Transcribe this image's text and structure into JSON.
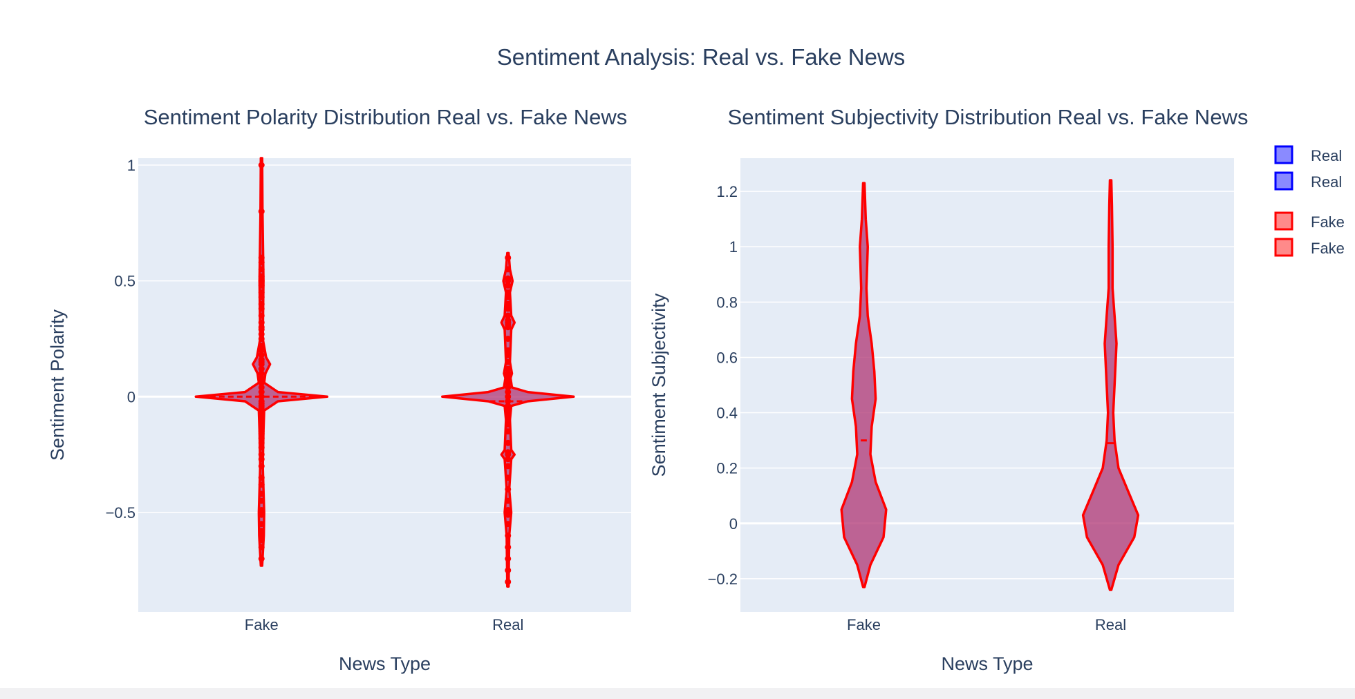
{
  "figure": {
    "title": "Sentiment Analysis: Real vs. Fake News",
    "colors": {
      "background": "#ffffff",
      "plot_bg": "#e5ecf6",
      "grid": "#ffffff",
      "text": "#2a3f5f",
      "fake_line": "#ff0000",
      "violin_fill": "#b23c78",
      "real_legend_fill": "#8a8aff",
      "real_legend_border": "#0000ff",
      "fake_legend_fill": "#ff8a8a",
      "fake_legend_border": "#ff0000"
    }
  },
  "legend": {
    "placement": "top-right",
    "entries": [
      {
        "label": "Real",
        "color": "real"
      },
      {
        "label": "Real",
        "color": "real"
      },
      {
        "label": "Fake",
        "color": "fake"
      },
      {
        "label": "Fake",
        "color": "fake"
      }
    ]
  },
  "chart_data": [
    {
      "type": "violin",
      "title": "Sentiment Polarity Distribution Real vs. Fake News",
      "xlabel": "News Type",
      "ylabel": "Sentiment Polarity",
      "categories": [
        "Fake",
        "Real"
      ],
      "ylim": [
        -0.93,
        1.03
      ],
      "yticks": [
        -0.5,
        0,
        0.5,
        1
      ],
      "ytick_labels": [
        "−0.5",
        "0",
        "0.5",
        "1"
      ],
      "grid": true,
      "meanline": true,
      "points": "all",
      "violins": [
        {
          "category": "Fake",
          "span": [
            -0.73,
            1.03
          ],
          "mean": 0.0,
          "profile": [
            [
              -0.73,
              0.01
            ],
            [
              -0.6,
              0.035
            ],
            [
              -0.5,
              0.04
            ],
            [
              -0.3,
              0.02
            ],
            [
              -0.15,
              0.03
            ],
            [
              -0.06,
              0.04
            ],
            [
              -0.02,
              0.25
            ],
            [
              0.0,
              1.0
            ],
            [
              0.02,
              0.25
            ],
            [
              0.06,
              0.04
            ],
            [
              0.1,
              0.06
            ],
            [
              0.14,
              0.13
            ],
            [
              0.17,
              0.07
            ],
            [
              0.25,
              0.02
            ],
            [
              0.5,
              0.03
            ],
            [
              0.8,
              0.015
            ],
            [
              1.03,
              0.01
            ]
          ],
          "points": [
            -0.7,
            -0.65,
            -0.62,
            -0.6,
            -0.58,
            -0.55,
            -0.51,
            -0.5,
            -0.49,
            -0.45,
            -0.42,
            -0.38,
            -0.35,
            -0.3,
            -0.27,
            -0.25,
            -0.22,
            -0.2,
            -0.18,
            -0.16,
            -0.15,
            -0.13,
            -0.12,
            -0.1,
            -0.08,
            -0.07,
            -0.06,
            -0.05,
            -0.04,
            -0.03,
            -0.02,
            0.0,
            0.02,
            0.04,
            0.06,
            0.08,
            0.1,
            0.12,
            0.14,
            0.15,
            0.16,
            0.18,
            0.2,
            0.22,
            0.25,
            0.27,
            0.29,
            0.3,
            0.32,
            0.35,
            0.38,
            0.4,
            0.43,
            0.45,
            0.48,
            0.5,
            0.52,
            0.55,
            0.58,
            0.6,
            0.8,
            1.0
          ]
        },
        {
          "category": "Real",
          "span": [
            -0.82,
            0.62
          ],
          "mean": -0.02,
          "profile": [
            [
              -0.82,
              0.01
            ],
            [
              -0.6,
              0.02
            ],
            [
              -0.5,
              0.05
            ],
            [
              -0.4,
              0.02
            ],
            [
              -0.27,
              0.05
            ],
            [
              -0.25,
              0.1
            ],
            [
              -0.23,
              0.05
            ],
            [
              -0.1,
              0.03
            ],
            [
              -0.04,
              0.05
            ],
            [
              -0.02,
              0.3
            ],
            [
              0.0,
              1.0
            ],
            [
              0.02,
              0.3
            ],
            [
              0.04,
              0.06
            ],
            [
              0.08,
              0.04
            ],
            [
              0.1,
              0.06
            ],
            [
              0.15,
              0.03
            ],
            [
              0.29,
              0.05
            ],
            [
              0.32,
              0.1
            ],
            [
              0.35,
              0.05
            ],
            [
              0.45,
              0.03
            ],
            [
              0.5,
              0.07
            ],
            [
              0.55,
              0.03
            ],
            [
              0.62,
              0.01
            ]
          ],
          "points": [
            -0.8,
            -0.75,
            -0.7,
            -0.65,
            -0.6,
            -0.55,
            -0.51,
            -0.5,
            -0.49,
            -0.45,
            -0.4,
            -0.35,
            -0.3,
            -0.27,
            -0.25,
            -0.24,
            -0.2,
            -0.15,
            -0.12,
            -0.1,
            -0.08,
            -0.06,
            -0.04,
            -0.02,
            0.0,
            0.02,
            0.04,
            0.06,
            0.08,
            0.1,
            0.12,
            0.15,
            0.18,
            0.2,
            0.25,
            0.3,
            0.31,
            0.32,
            0.33,
            0.35,
            0.38,
            0.4,
            0.43,
            0.45,
            0.48,
            0.5,
            0.51,
            0.55,
            0.6
          ]
        }
      ]
    },
    {
      "type": "violin",
      "title": "Sentiment Subjectivity Distribution Real vs. Fake News",
      "xlabel": "News Type",
      "ylabel": "Sentiment Subjectivity",
      "categories": [
        "Fake",
        "Real"
      ],
      "ylim": [
        -0.32,
        1.32
      ],
      "yticks": [
        -0.2,
        0,
        0.2,
        0.4,
        0.6,
        0.8,
        1,
        1.2
      ],
      "ytick_labels": [
        "−0.2",
        "0",
        "0.2",
        "0.4",
        "0.6",
        "0.8",
        "1",
        "1.2"
      ],
      "grid": true,
      "meanline": true,
      "points": "none",
      "violins": [
        {
          "category": "Fake",
          "span": [
            -0.23,
            1.23
          ],
          "mean": 0.3,
          "profile": [
            [
              -0.23,
              0.01
            ],
            [
              -0.15,
              0.1
            ],
            [
              -0.05,
              0.3
            ],
            [
              0.05,
              0.34
            ],
            [
              0.15,
              0.18
            ],
            [
              0.25,
              0.1
            ],
            [
              0.35,
              0.12
            ],
            [
              0.45,
              0.18
            ],
            [
              0.55,
              0.16
            ],
            [
              0.65,
              0.12
            ],
            [
              0.75,
              0.06
            ],
            [
              0.85,
              0.04
            ],
            [
              1.0,
              0.06
            ],
            [
              1.1,
              0.03
            ],
            [
              1.23,
              0.01
            ]
          ]
        },
        {
          "category": "Real",
          "span": [
            -0.24,
            1.24
          ],
          "mean": 0.29,
          "profile": [
            [
              -0.24,
              0.01
            ],
            [
              -0.15,
              0.12
            ],
            [
              -0.05,
              0.36
            ],
            [
              0.03,
              0.42
            ],
            [
              0.12,
              0.26
            ],
            [
              0.2,
              0.12
            ],
            [
              0.3,
              0.06
            ],
            [
              0.4,
              0.04
            ],
            [
              0.5,
              0.06
            ],
            [
              0.65,
              0.09
            ],
            [
              0.75,
              0.06
            ],
            [
              0.85,
              0.03
            ],
            [
              1.0,
              0.03
            ],
            [
              1.15,
              0.02
            ],
            [
              1.24,
              0.01
            ]
          ]
        }
      ]
    }
  ]
}
